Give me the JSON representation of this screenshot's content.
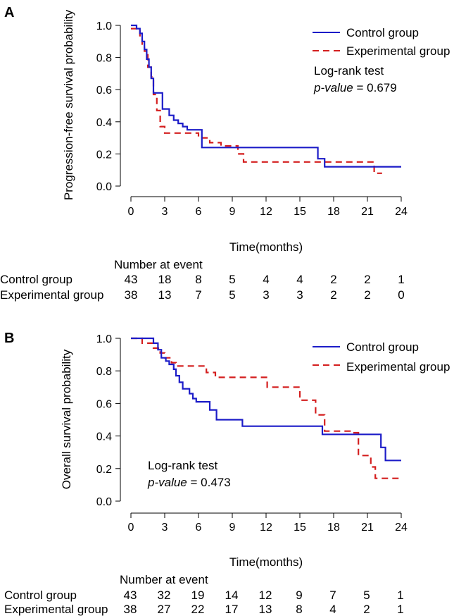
{
  "chart_data": [
    {
      "type": "line",
      "panel_label": "A",
      "ylabel": "Progression-free survival probability",
      "xlabel": "Time(months)",
      "xlim": [
        0,
        24
      ],
      "ylim": [
        0,
        1
      ],
      "x_ticks": [
        "0",
        "3",
        "6",
        "9",
        "12",
        "15",
        "18",
        "21",
        "24"
      ],
      "y_ticks": [
        "0.0",
        "0.2",
        "0.4",
        "0.6",
        "0.8",
        "1.0"
      ],
      "legend": {
        "position": "top-right",
        "entries": [
          "Control group",
          "Experimental group"
        ]
      },
      "annotation": {
        "line1": "Log-rank test",
        "pv_label": "p-value",
        "pv_rest": " = 0.679"
      },
      "series": [
        {
          "name": "Control group",
          "color": "#1c1cc8",
          "dash": "solid",
          "steps": [
            [
              0,
              1.0
            ],
            [
              0.5,
              0.98
            ],
            [
              0.8,
              0.95
            ],
            [
              1.0,
              0.9
            ],
            [
              1.2,
              0.85
            ],
            [
              1.4,
              0.79
            ],
            [
              1.6,
              0.74
            ],
            [
              1.8,
              0.67
            ],
            [
              2.0,
              0.58
            ],
            [
              2.8,
              0.48
            ],
            [
              3.4,
              0.44
            ],
            [
              3.8,
              0.41
            ],
            [
              4.2,
              0.39
            ],
            [
              4.6,
              0.37
            ],
            [
              5.0,
              0.35
            ],
            [
              6.3,
              0.24
            ],
            [
              16.6,
              0.17
            ],
            [
              17.2,
              0.12
            ],
            [
              24,
              0.12
            ]
          ]
        },
        {
          "name": "Experimental group",
          "color": "#d41e1e",
          "dash": "dashed",
          "steps": [
            [
              0,
              0.98
            ],
            [
              0.8,
              0.92
            ],
            [
              1.0,
              0.87
            ],
            [
              1.2,
              0.84
            ],
            [
              1.5,
              0.74
            ],
            [
              1.8,
              0.68
            ],
            [
              2.0,
              0.57
            ],
            [
              2.3,
              0.47
            ],
            [
              2.6,
              0.37
            ],
            [
              3.0,
              0.33
            ],
            [
              4.5,
              0.33
            ],
            [
              6.0,
              0.3
            ],
            [
              7.0,
              0.27
            ],
            [
              8.0,
              0.25
            ],
            [
              9.5,
              0.2
            ],
            [
              10.0,
              0.15
            ],
            [
              21.6,
              0.08
            ],
            [
              22.3,
              0.08
            ]
          ]
        }
      ],
      "risk_table": {
        "title": "Number at event",
        "rows": [
          {
            "label": "Control group",
            "values": [
              "43",
              "18",
              "8",
              "5",
              "4",
              "4",
              "2",
              "2",
              "1"
            ]
          },
          {
            "label": "Experimental group",
            "values": [
              "38",
              "13",
              "7",
              "5",
              "3",
              "3",
              "2",
              "2",
              "0"
            ]
          }
        ]
      }
    },
    {
      "type": "line",
      "panel_label": "B",
      "ylabel": "Overall survival probability",
      "xlabel": "Time(months)",
      "xlim": [
        0,
        24
      ],
      "ylim": [
        0,
        1
      ],
      "x_ticks": [
        "0",
        "3",
        "6",
        "9",
        "12",
        "15",
        "18",
        "21",
        "24"
      ],
      "y_ticks": [
        "0.0",
        "0.2",
        "0.4",
        "0.6",
        "0.8",
        "1.0"
      ],
      "legend": {
        "position": "top-right",
        "entries": [
          "Control group",
          "Experimental group"
        ]
      },
      "annotation": {
        "line1": "Log-rank test",
        "pv_label": "p-value",
        "pv_rest": " = 0.473"
      },
      "series": [
        {
          "name": "Control group",
          "color": "#1c1cc8",
          "dash": "solid",
          "steps": [
            [
              0,
              1.0
            ],
            [
              2.0,
              0.97
            ],
            [
              2.4,
              0.93
            ],
            [
              2.7,
              0.88
            ],
            [
              3.1,
              0.86
            ],
            [
              3.4,
              0.84
            ],
            [
              3.8,
              0.81
            ],
            [
              4.0,
              0.77
            ],
            [
              4.3,
              0.73
            ],
            [
              4.6,
              0.69
            ],
            [
              5.2,
              0.66
            ],
            [
              5.5,
              0.63
            ],
            [
              5.8,
              0.61
            ],
            [
              7.0,
              0.56
            ],
            [
              7.6,
              0.5
            ],
            [
              9.9,
              0.46
            ],
            [
              17.0,
              0.41
            ],
            [
              22.2,
              0.33
            ],
            [
              22.6,
              0.25
            ],
            [
              24,
              0.25
            ]
          ]
        },
        {
          "name": "Experimental group",
          "color": "#d41e1e",
          "dash": "dashed",
          "steps": [
            [
              0,
              1.0
            ],
            [
              1.0,
              0.97
            ],
            [
              2.0,
              0.94
            ],
            [
              2.6,
              0.91
            ],
            [
              3.0,
              0.88
            ],
            [
              3.6,
              0.85
            ],
            [
              4.0,
              0.83
            ],
            [
              6.7,
              0.79
            ],
            [
              7.5,
              0.76
            ],
            [
              12.1,
              0.7
            ],
            [
              15.0,
              0.62
            ],
            [
              16.4,
              0.53
            ],
            [
              17.2,
              0.43
            ],
            [
              19.7,
              0.42
            ],
            [
              20.2,
              0.28
            ],
            [
              21.3,
              0.21
            ],
            [
              21.7,
              0.14
            ],
            [
              24,
              0.14
            ]
          ]
        }
      ],
      "risk_table": {
        "title": "Number at event",
        "rows": [
          {
            "label": "Control group",
            "values": [
              "43",
              "32",
              "19",
              "14",
              "12",
              "9",
              "7",
              "5",
              "1"
            ]
          },
          {
            "label": "Experimental group",
            "values": [
              "38",
              "27",
              "22",
              "17",
              "13",
              "8",
              "4",
              "2",
              "1"
            ]
          }
        ]
      }
    }
  ]
}
